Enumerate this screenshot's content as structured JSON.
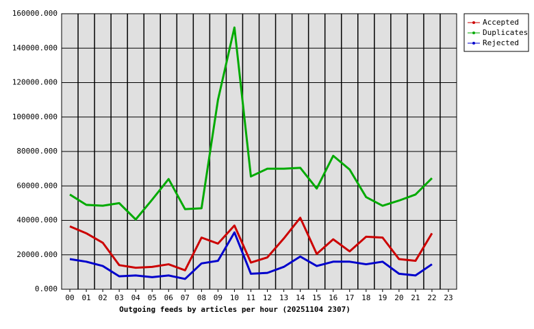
{
  "chart_data": {
    "type": "line",
    "title": "Outgoing feeds by articles per hour (20251104 2307)",
    "categories": [
      "00",
      "01",
      "02",
      "03",
      "04",
      "05",
      "06",
      "07",
      "08",
      "09",
      "10",
      "11",
      "12",
      "13",
      "14",
      "15",
      "16",
      "17",
      "18",
      "19",
      "20",
      "21",
      "22",
      "23"
    ],
    "series": [
      {
        "name": "Accepted",
        "color": "#cc0000",
        "values": [
          36500,
          32500,
          27000,
          14000,
          12500,
          13000,
          14500,
          11000,
          30000,
          26500,
          37000,
          15500,
          18500,
          29500,
          41500,
          20500,
          29000,
          22000,
          30500,
          30000,
          17500,
          16500,
          32500,
          null
        ]
      },
      {
        "name": "Duplicates",
        "color": "#00aa00",
        "values": [
          55000,
          49000,
          48500,
          50000,
          40500,
          52000,
          64000,
          46500,
          47000,
          110000,
          152000,
          65500,
          70000,
          70000,
          70500,
          58500,
          77500,
          69500,
          53500,
          48500,
          51500,
          55000,
          64500,
          null
        ]
      },
      {
        "name": "Rejected",
        "color": "#0000cc",
        "values": [
          17500,
          16000,
          13500,
          7500,
          8000,
          7000,
          8000,
          6000,
          15000,
          16500,
          33000,
          9000,
          9500,
          13000,
          19000,
          13500,
          16000,
          16000,
          14500,
          16000,
          9000,
          8000,
          14500,
          null
        ]
      }
    ],
    "ylim": [
      0,
      160000
    ],
    "yticks": [
      {
        "value": 0,
        "label": "0.000"
      },
      {
        "value": 20000,
        "label": "20000.000"
      },
      {
        "value": 40000,
        "label": "40000.000"
      },
      {
        "value": 60000,
        "label": "60000.000"
      },
      {
        "value": 80000,
        "label": "80000.000"
      },
      {
        "value": 100000,
        "label": "100000.000"
      },
      {
        "value": 120000,
        "label": "120000.000"
      },
      {
        "value": 140000,
        "label": "140000.000"
      },
      {
        "value": 160000,
        "label": "160000.000"
      }
    ],
    "grid": true,
    "legend": "top-right"
  }
}
